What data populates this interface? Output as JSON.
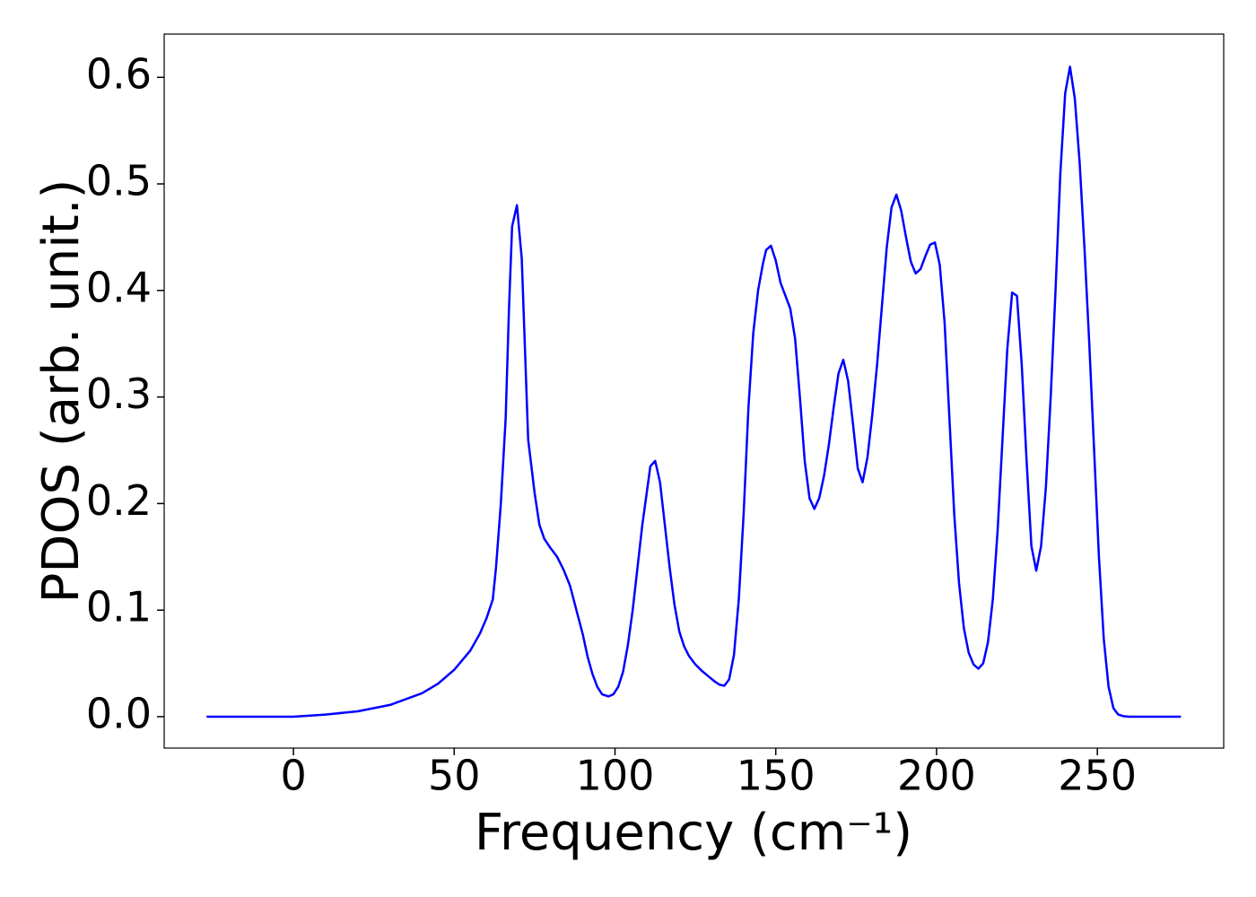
{
  "chart_data": {
    "type": "line",
    "xlabel": "Frequency (cm⁻¹)",
    "ylabel": "PDOS (arb. unit.)",
    "color": "#0000ff",
    "x": [
      -27,
      0,
      10,
      20,
      30,
      40,
      45,
      50,
      55,
      58,
      60,
      62,
      63,
      64.5,
      66,
      67,
      68,
      69.5,
      71,
      73,
      75,
      76.5,
      78,
      80,
      82,
      84,
      86,
      88,
      90,
      91.5,
      93,
      94.5,
      96,
      98,
      99.5,
      101,
      102.5,
      104,
      105.5,
      107,
      108.5,
      110,
      111,
      112.5,
      114,
      115.5,
      117,
      118.5,
      120,
      121.5,
      123,
      125,
      127,
      129,
      131,
      132.5,
      134,
      135.5,
      137,
      138.5,
      140,
      141.5,
      143,
      144.5,
      146,
      147,
      148.5,
      150,
      151.5,
      153,
      154.5,
      156,
      157.5,
      159,
      160.5,
      162,
      163.5,
      165,
      166.5,
      168,
      169.5,
      171,
      172.5,
      174,
      175.5,
      177,
      178.5,
      180,
      181.5,
      183,
      184.5,
      186,
      187.5,
      189,
      190.5,
      192,
      193.5,
      195,
      196.5,
      198,
      199.5,
      201,
      202.5,
      204,
      205.5,
      207,
      208.5,
      210,
      211.5,
      213,
      214.5,
      216,
      217.5,
      219,
      220.5,
      222,
      223.5,
      225,
      226.5,
      228,
      229.5,
      231,
      232.5,
      234,
      235.5,
      237,
      238.5,
      240,
      241.5,
      243,
      244.5,
      246,
      247.5,
      249,
      250.5,
      252,
      253.5,
      255,
      256.5,
      258,
      260,
      276
    ],
    "values": [
      0,
      0,
      0.002,
      0.005,
      0.011,
      0.022,
      0.031,
      0.044,
      0.062,
      0.078,
      0.092,
      0.11,
      0.14,
      0.2,
      0.28,
      0.38,
      0.46,
      0.48,
      0.43,
      0.26,
      0.21,
      0.18,
      0.167,
      0.158,
      0.15,
      0.138,
      0.123,
      0.1,
      0.077,
      0.056,
      0.04,
      0.028,
      0.021,
      0.019,
      0.021,
      0.028,
      0.042,
      0.067,
      0.1,
      0.14,
      0.18,
      0.213,
      0.235,
      0.24,
      0.22,
      0.18,
      0.14,
      0.105,
      0.08,
      0.066,
      0.057,
      0.049,
      0.043,
      0.038,
      0.033,
      0.03,
      0.029,
      0.035,
      0.058,
      0.11,
      0.19,
      0.29,
      0.36,
      0.4,
      0.425,
      0.438,
      0.442,
      0.428,
      0.407,
      0.395,
      0.383,
      0.355,
      0.3,
      0.24,
      0.205,
      0.195,
      0.205,
      0.226,
      0.255,
      0.29,
      0.322,
      0.335,
      0.315,
      0.275,
      0.233,
      0.22,
      0.243,
      0.283,
      0.33,
      0.385,
      0.44,
      0.478,
      0.49,
      0.475,
      0.45,
      0.427,
      0.416,
      0.42,
      0.432,
      0.443,
      0.445,
      0.424,
      0.37,
      0.28,
      0.19,
      0.125,
      0.083,
      0.06,
      0.049,
      0.045,
      0.05,
      0.07,
      0.11,
      0.175,
      0.26,
      0.345,
      0.398,
      0.395,
      0.33,
      0.24,
      0.16,
      0.137,
      0.16,
      0.215,
      0.3,
      0.4,
      0.51,
      0.585,
      0.61,
      0.58,
      0.52,
      0.44,
      0.35,
      0.25,
      0.15,
      0.073,
      0.028,
      0.008,
      0.002,
      0.0005,
      0,
      0
    ],
    "xlim": [
      -40.2,
      289.3
    ],
    "ylim": [
      -0.0295,
      0.6406
    ],
    "xticks": [
      0,
      50,
      100,
      150,
      200,
      250
    ],
    "yticks": [
      {
        "value": 0,
        "label": "0.0"
      },
      0.1,
      0.2,
      0.3,
      0.4,
      0.5,
      0.6
    ]
  }
}
